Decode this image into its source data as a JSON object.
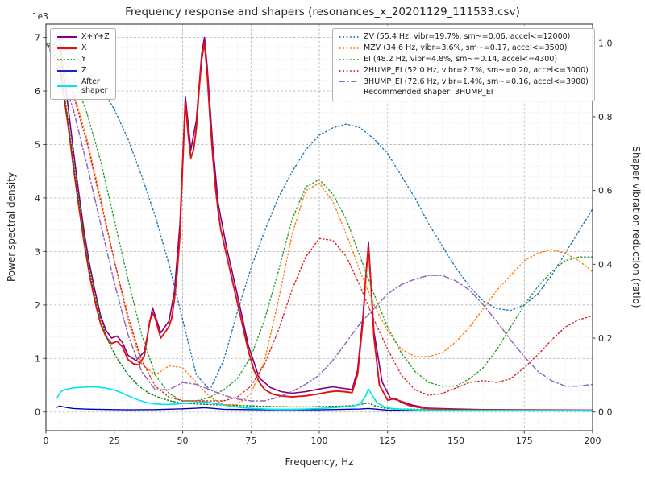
{
  "figure": {
    "background": "#ffffff"
  },
  "chart_data": {
    "type": "line",
    "title": "Frequency response and shapers (resonances_x_20201129_111533.csv)",
    "xlabel": "Frequency, Hz",
    "ylabel_left": "Power spectral density",
    "ylabel_right": "Shaper vibration reduction (ratio)",
    "offset_text": "1e3",
    "xlim": [
      0,
      200
    ],
    "ylim_left": [
      -350,
      7250
    ],
    "right_axis_scale": 6900,
    "grid": {
      "major_color": "#a8a8a8",
      "minor_color": "#d9d9d9"
    },
    "x_ticks": {
      "values": [
        0,
        25,
        50,
        75,
        100,
        125,
        150,
        175,
        200
      ],
      "labels": [
        "0",
        "25",
        "50",
        "75",
        "100",
        "125",
        "150",
        "175",
        "200"
      ]
    },
    "y_left_ticks": {
      "values": [
        0,
        1000,
        2000,
        3000,
        4000,
        5000,
        6000,
        7000
      ],
      "labels": [
        "0",
        "1",
        "2",
        "3",
        "4",
        "5",
        "6",
        "7"
      ]
    },
    "y_right_ticks": {
      "values": [
        0,
        0.2,
        0.4,
        0.6,
        0.8,
        1.0
      ],
      "labels": [
        "0.0",
        "0.2",
        "0.4",
        "0.6",
        "0.8",
        "1.0"
      ]
    },
    "psd_series": [
      {
        "id": "xyz",
        "label": "X+Y+Z",
        "color": "#800080",
        "dash": "",
        "width": 1.6,
        "x": [
          4,
          5,
          6,
          8,
          10,
          12,
          14,
          16,
          18,
          20,
          22,
          24,
          26,
          28,
          30,
          33,
          36,
          39,
          42,
          45,
          47,
          49,
          51,
          53,
          55,
          57,
          58,
          59,
          61,
          63,
          66,
          70,
          74,
          78,
          82,
          86,
          90,
          95,
          100,
          105,
          109,
          112,
          114,
          116,
          118,
          120,
          123,
          126,
          130,
          134,
          140,
          150,
          160,
          175,
          200
        ],
        "y": [
          6950,
          7000,
          6500,
          5750,
          4900,
          4100,
          3350,
          2750,
          2250,
          1800,
          1520,
          1380,
          1420,
          1300,
          1060,
          960,
          1130,
          1950,
          1480,
          1700,
          2250,
          3500,
          5900,
          4900,
          5450,
          6700,
          7000,
          6450,
          5000,
          3900,
          3100,
          2200,
          1250,
          640,
          460,
          380,
          350,
          380,
          430,
          470,
          440,
          420,
          780,
          1800,
          3180,
          1500,
          560,
          260,
          200,
          130,
          70,
          55,
          45,
          40,
          35
        ]
      },
      {
        "id": "x",
        "label": "X",
        "color": "#e01212",
        "dash": "",
        "width": 1.9,
        "x": [
          4,
          5,
          6,
          8,
          10,
          12,
          14,
          16,
          18,
          20,
          22,
          24,
          25,
          26,
          28,
          30,
          32,
          34,
          36,
          38,
          39,
          40,
          42,
          44,
          45,
          46,
          47,
          48,
          49,
          50,
          51,
          52,
          53,
          54,
          55,
          56,
          57,
          58,
          59,
          60,
          61,
          62,
          63,
          64,
          66,
          68,
          70,
          72,
          74,
          76,
          78,
          80,
          83,
          86,
          90,
          95,
          100,
          103,
          106,
          109,
          112,
          114,
          116,
          117,
          118,
          119,
          120,
          122,
          125,
          128,
          130,
          133,
          136,
          140,
          150,
          160,
          175,
          200
        ],
        "y": [
          6400,
          6450,
          6100,
          5400,
          4600,
          3850,
          3150,
          2550,
          2050,
          1650,
          1400,
          1280,
          1300,
          1320,
          1220,
          980,
          900,
          880,
          1050,
          1700,
          1850,
          1750,
          1380,
          1520,
          1600,
          1750,
          2100,
          2600,
          3300,
          4600,
          5800,
          5200,
          4750,
          4900,
          5300,
          6000,
          6600,
          6900,
          6300,
          5500,
          4800,
          4200,
          3750,
          3400,
          2950,
          2500,
          2050,
          1600,
          1150,
          800,
          560,
          420,
          330,
          300,
          280,
          300,
          340,
          370,
          390,
          380,
          360,
          700,
          1700,
          2500,
          3100,
          2300,
          1400,
          500,
          220,
          250,
          180,
          120,
          90,
          60,
          45,
          40,
          35,
          30
        ]
      },
      {
        "id": "y",
        "label": "Y",
        "color": "#0a7d0a",
        "dash": "1.5 2.6",
        "width": 1.4,
        "x": [
          4,
          5,
          6,
          8,
          10,
          12,
          14,
          16,
          18,
          20,
          23,
          26,
          30,
          34,
          38,
          42,
          46,
          50,
          55,
          60,
          65,
          70,
          75,
          80,
          85,
          90,
          95,
          100,
          105,
          110,
          114,
          117,
          118,
          120,
          124,
          130,
          140,
          155,
          175,
          200
        ],
        "y": [
          6500,
          6600,
          6200,
          5500,
          4700,
          3950,
          3250,
          2650,
          2150,
          1750,
          1300,
          1000,
          700,
          480,
          340,
          260,
          200,
          165,
          150,
          140,
          130,
          120,
          115,
          105,
          100,
          95,
          95,
          100,
          105,
          115,
          130,
          160,
          170,
          120,
          70,
          55,
          45,
          40,
          35,
          30
        ]
      },
      {
        "id": "z",
        "label": "Z",
        "color": "#0000b8",
        "dash": "",
        "width": 1.4,
        "x": [
          4,
          5,
          6,
          8,
          10,
          14,
          18,
          25,
          30,
          40,
          50,
          55,
          58,
          65,
          80,
          100,
          115,
          118,
          125,
          150,
          200
        ],
        "y": [
          90,
          110,
          100,
          80,
          65,
          55,
          50,
          45,
          40,
          45,
          60,
          70,
          80,
          50,
          40,
          40,
          55,
          65,
          35,
          25,
          20
        ]
      },
      {
        "id": "after-shaper",
        "label": "After\nshaper",
        "color": "#00e5e5",
        "dash": "",
        "width": 1.6,
        "x": [
          4,
          5,
          6,
          8,
          10,
          13,
          16,
          19,
          22,
          25,
          28,
          31,
          34,
          37,
          40,
          44,
          48,
          52,
          56,
          58,
          60,
          64,
          68,
          72,
          76,
          80,
          85,
          90,
          95,
          100,
          105,
          110,
          113,
          115,
          117,
          118,
          119,
          121,
          124,
          127,
          130,
          135,
          140,
          150,
          160,
          180,
          200
        ],
        "y": [
          260,
          350,
          400,
          430,
          450,
          460,
          470,
          465,
          445,
          410,
          350,
          280,
          220,
          175,
          150,
          140,
          150,
          165,
          180,
          190,
          175,
          140,
          105,
          80,
          65,
          55,
          50,
          50,
          55,
          65,
          80,
          100,
          120,
          150,
          300,
          430,
          340,
          180,
          90,
          60,
          50,
          40,
          35,
          30,
          30,
          30,
          30
        ]
      }
    ],
    "shaper_series": [
      {
        "id": "zv",
        "label": "ZV (55.4 Hz, vibr=19.7%, sm~=0.06, accel<=12000)",
        "color": "#1f77b4",
        "dash": "1.6 2.8",
        "width": 1.4,
        "x": [
          0,
          5,
          10,
          15,
          20,
          25,
          30,
          35,
          40,
          45,
          50,
          55,
          60,
          65,
          70,
          75,
          80,
          85,
          90,
          95,
          100,
          105,
          110,
          115,
          120,
          125,
          130,
          135,
          140,
          145,
          150,
          155,
          160,
          165,
          170,
          175,
          180,
          185,
          190,
          195,
          200
        ],
        "y": [
          1.0,
          0.99,
          0.97,
          0.93,
          0.88,
          0.82,
          0.74,
          0.64,
          0.53,
          0.4,
          0.25,
          0.1,
          0.06,
          0.14,
          0.27,
          0.39,
          0.49,
          0.58,
          0.65,
          0.71,
          0.75,
          0.77,
          0.78,
          0.77,
          0.74,
          0.7,
          0.64,
          0.58,
          0.51,
          0.45,
          0.39,
          0.34,
          0.3,
          0.28,
          0.275,
          0.29,
          0.32,
          0.37,
          0.43,
          0.49,
          0.55
        ]
      },
      {
        "id": "mzv",
        "label": "MZV (34.6 Hz, vibr=3.6%, sm~=0.17, accel<=3500)",
        "color": "#ff7f0e",
        "dash": "1.6 2.8",
        "width": 1.4,
        "x": [
          0,
          5,
          10,
          15,
          20,
          25,
          30,
          35,
          40,
          45,
          50,
          55,
          60,
          65,
          70,
          75,
          80,
          85,
          90,
          95,
          100,
          105,
          110,
          115,
          120,
          125,
          130,
          135,
          140,
          145,
          150,
          155,
          160,
          165,
          170,
          175,
          180,
          185,
          190,
          195,
          200
        ],
        "y": [
          1.0,
          0.96,
          0.87,
          0.74,
          0.58,
          0.41,
          0.25,
          0.13,
          0.1,
          0.125,
          0.12,
          0.08,
          0.04,
          0.02,
          0.02,
          0.05,
          0.14,
          0.3,
          0.48,
          0.6,
          0.62,
          0.57,
          0.48,
          0.38,
          0.29,
          0.22,
          0.17,
          0.15,
          0.15,
          0.16,
          0.19,
          0.23,
          0.28,
          0.33,
          0.37,
          0.41,
          0.43,
          0.44,
          0.43,
          0.41,
          0.38
        ]
      },
      {
        "id": "ei",
        "label": "EI (48.2 Hz, vibr=4.8%, sm~=0.14, accel<=4300)",
        "color": "#2ca02c",
        "dash": "1.6 2.8",
        "width": 1.4,
        "x": [
          0,
          5,
          10,
          15,
          20,
          25,
          30,
          35,
          40,
          45,
          50,
          55,
          60,
          65,
          70,
          75,
          80,
          85,
          90,
          95,
          100,
          105,
          110,
          115,
          120,
          125,
          130,
          135,
          140,
          145,
          150,
          155,
          160,
          165,
          170,
          175,
          180,
          185,
          190,
          195,
          200
        ],
        "y": [
          1.0,
          0.97,
          0.91,
          0.81,
          0.68,
          0.52,
          0.36,
          0.21,
          0.1,
          0.05,
          0.03,
          0.03,
          0.04,
          0.06,
          0.09,
          0.15,
          0.25,
          0.38,
          0.52,
          0.61,
          0.63,
          0.59,
          0.52,
          0.42,
          0.32,
          0.23,
          0.16,
          0.11,
          0.08,
          0.07,
          0.07,
          0.09,
          0.12,
          0.17,
          0.23,
          0.29,
          0.34,
          0.38,
          0.41,
          0.42,
          0.42
        ]
      },
      {
        "id": "2hump-ei",
        "label": "2HUMP_EI (52.0 Hz, vibr=2.7%, sm~=0.20, accel<=3000)",
        "color": "#d62728",
        "dash": "1.6 2.8",
        "width": 1.4,
        "x": [
          0,
          5,
          10,
          15,
          20,
          25,
          30,
          35,
          40,
          45,
          50,
          55,
          60,
          65,
          70,
          75,
          80,
          85,
          90,
          95,
          100,
          105,
          110,
          115,
          120,
          125,
          130,
          135,
          140,
          145,
          150,
          155,
          160,
          165,
          170,
          175,
          180,
          185,
          190,
          195,
          200
        ],
        "y": [
          1.0,
          0.95,
          0.86,
          0.73,
          0.57,
          0.41,
          0.26,
          0.14,
          0.07,
          0.04,
          0.03,
          0.03,
          0.03,
          0.03,
          0.04,
          0.07,
          0.13,
          0.22,
          0.33,
          0.42,
          0.47,
          0.465,
          0.42,
          0.34,
          0.25,
          0.17,
          0.1,
          0.06,
          0.045,
          0.05,
          0.065,
          0.08,
          0.085,
          0.08,
          0.09,
          0.12,
          0.155,
          0.195,
          0.23,
          0.25,
          0.26
        ]
      },
      {
        "id": "3hump-ei",
        "label": "3HUMP_EI (72.6 Hz, vibr=1.4%, sm~=0.16, accel<=3900)",
        "color": "#9467bd",
        "dash": "7 3 1.4 3",
        "width": 1.5,
        "x": [
          0,
          5,
          10,
          15,
          20,
          25,
          30,
          35,
          40,
          45,
          50,
          55,
          60,
          65,
          70,
          75,
          80,
          85,
          90,
          95,
          100,
          105,
          110,
          115,
          120,
          125,
          130,
          135,
          140,
          145,
          150,
          155,
          160,
          165,
          170,
          175,
          180,
          185,
          190,
          195,
          200
        ],
        "y": [
          1.0,
          0.93,
          0.82,
          0.67,
          0.51,
          0.35,
          0.21,
          0.11,
          0.06,
          0.06,
          0.08,
          0.075,
          0.06,
          0.045,
          0.035,
          0.03,
          0.03,
          0.04,
          0.055,
          0.075,
          0.1,
          0.14,
          0.19,
          0.24,
          0.28,
          0.32,
          0.345,
          0.36,
          0.37,
          0.37,
          0.355,
          0.33,
          0.29,
          0.245,
          0.195,
          0.15,
          0.11,
          0.085,
          0.07,
          0.07,
          0.075
        ]
      }
    ],
    "recommendation": "Recommended shaper: 3HUMP_EI"
  }
}
